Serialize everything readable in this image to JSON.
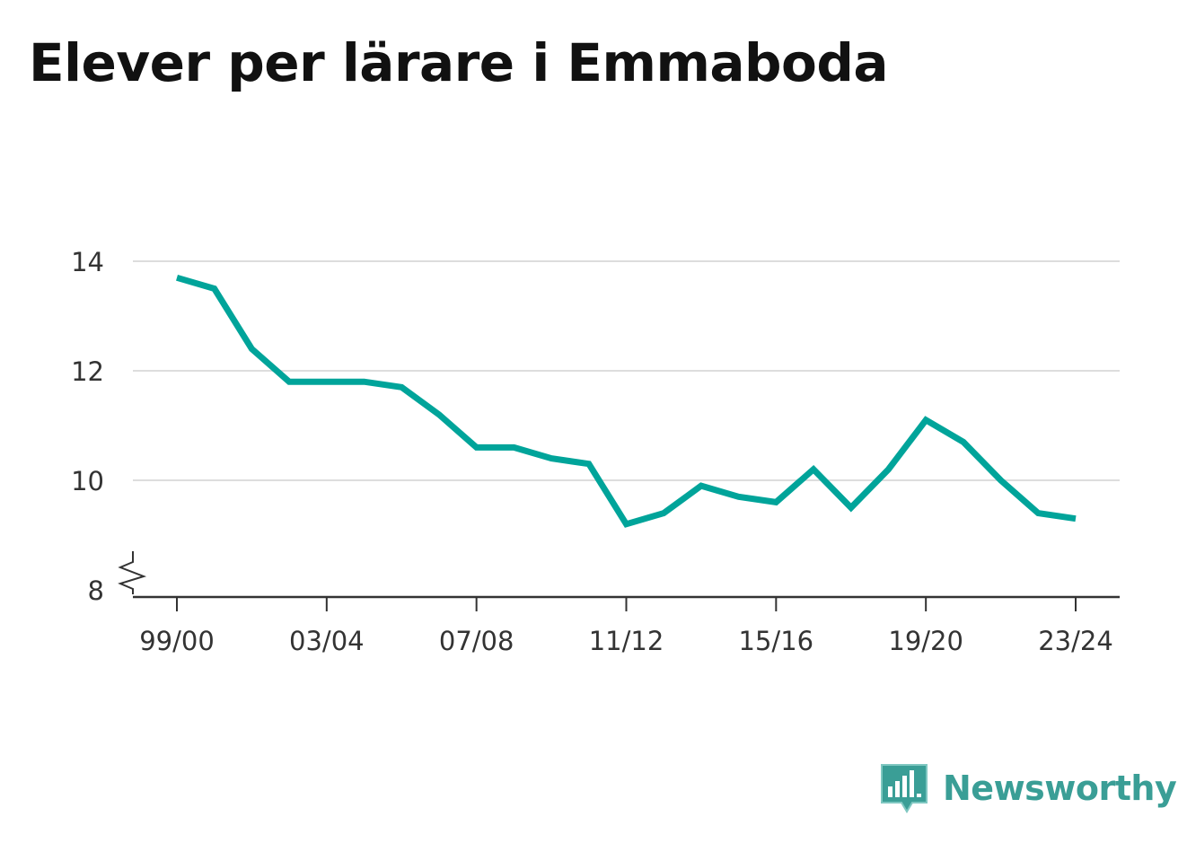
{
  "title": "Elever per lärare i Emmaboda",
  "brand": {
    "name": "Newsworthy",
    "icon": "newsworthy-logo-icon",
    "color": "#3a9e96"
  },
  "chart_data": {
    "type": "line",
    "title": "Elever per lärare i Emmaboda",
    "xlabel": "",
    "ylabel": "",
    "x": [
      "99/00",
      "00/01",
      "01/02",
      "02/03",
      "03/04",
      "04/05",
      "05/06",
      "06/07",
      "07/08",
      "08/09",
      "09/10",
      "10/11",
      "11/12",
      "12/13",
      "13/14",
      "14/15",
      "15/16",
      "16/17",
      "17/18",
      "18/19",
      "19/20",
      "20/21",
      "21/22",
      "22/23",
      "23/24"
    ],
    "x_tick_labels": [
      "99/00",
      "03/04",
      "07/08",
      "11/12",
      "15/16",
      "19/20",
      "23/24"
    ],
    "y_ticks": [
      8,
      10,
      12,
      14
    ],
    "ylim": [
      8,
      14
    ],
    "y_axis_break": true,
    "grid": "horizontal",
    "series": [
      {
        "color": "#00a49a",
        "values": [
          13.7,
          13.5,
          12.4,
          11.8,
          11.8,
          11.8,
          11.7,
          11.2,
          10.6,
          10.6,
          10.4,
          10.3,
          9.2,
          9.4,
          9.9,
          9.7,
          9.6,
          10.2,
          9.5,
          10.2,
          11.1,
          10.7,
          10.0,
          9.4,
          9.3
        ]
      }
    ]
  }
}
